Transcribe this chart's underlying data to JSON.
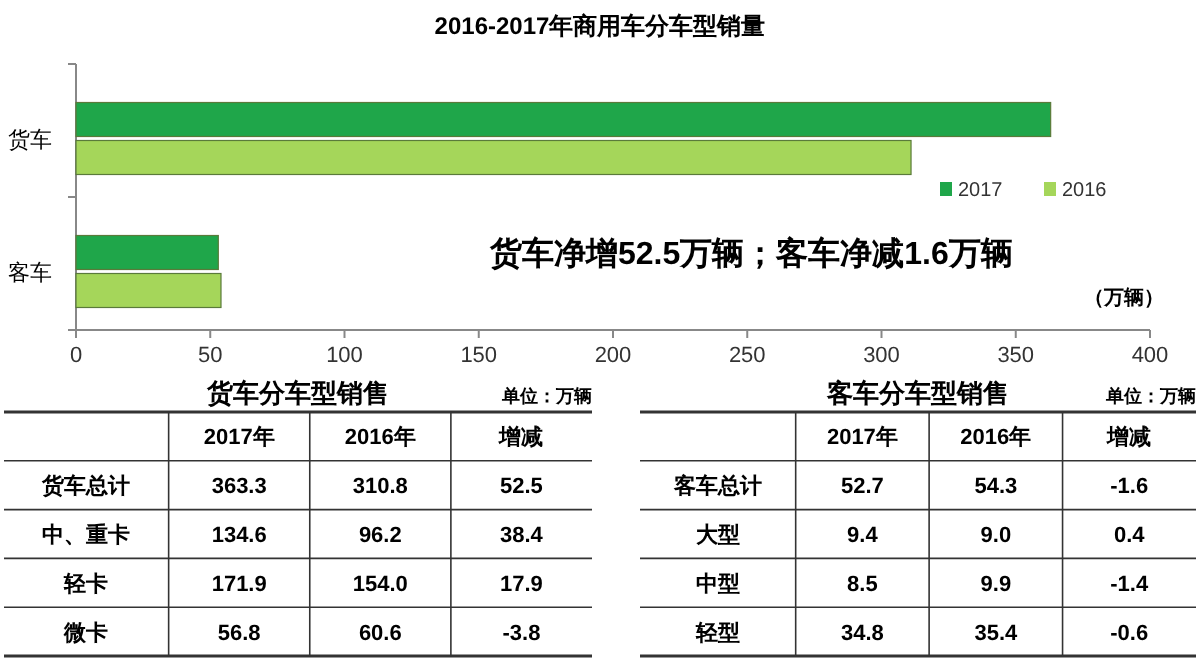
{
  "chart_data": [
    {
      "type": "bar",
      "orientation": "horizontal",
      "title": "2016-2017年商用车分车型销量",
      "xlabel": "（万辆）",
      "categories": [
        "货车",
        "客车"
      ],
      "series": [
        {
          "name": "2017",
          "color": "#1fa64a",
          "values": [
            363,
            53
          ]
        },
        {
          "name": "2016",
          "color": "#a5d65a",
          "values": [
            311,
            54
          ]
        }
      ],
      "xlim": [
        0,
        400
      ],
      "xticks": [
        0,
        50,
        100,
        150,
        200,
        250,
        300,
        350,
        400
      ],
      "legend": "right",
      "annotations": [
        "货车净增52.5万辆；客车净减1.6万辆"
      ]
    },
    {
      "type": "other",
      "title": "货车分车型销售",
      "annotations": [
        "单位：万辆"
      ],
      "categories": [
        "货车总计",
        "中、重卡",
        "轻卡",
        "微卡"
      ],
      "series": [
        {
          "name": "2017年",
          "values": [
            363.3,
            134.6,
            171.9,
            56.8
          ],
          "value_labels": [
            "363.3",
            "134.6",
            "171.9",
            "56.8"
          ]
        },
        {
          "name": "2016年",
          "values": [
            310.8,
            96.2,
            154.0,
            60.6
          ],
          "value_labels": [
            "310.8",
            "96.2",
            "154.0",
            "60.6"
          ]
        },
        {
          "name": "增减",
          "values": [
            52.5,
            38.4,
            17.9,
            -3.8
          ],
          "value_labels": [
            "52.5",
            "38.4",
            "17.9",
            "-3.8"
          ]
        }
      ]
    },
    {
      "type": "other",
      "title": "客车分车型销售",
      "annotations": [
        "单位：万辆"
      ],
      "categories": [
        "客车总计",
        "大型",
        "中型",
        "轻型"
      ],
      "series": [
        {
          "name": "2017年",
          "values": [
            52.7,
            9.4,
            8.5,
            34.8
          ],
          "value_labels": [
            "52.7",
            "9.4",
            "8.5",
            "34.8"
          ]
        },
        {
          "name": "2016年",
          "values": [
            54.3,
            9.0,
            9.9,
            35.4
          ],
          "value_labels": [
            "54.3",
            "9.0",
            "9.9",
            "35.4"
          ]
        },
        {
          "name": "增减",
          "values": [
            -1.6,
            0.4,
            -1.4,
            -0.6
          ],
          "value_labels": [
            "-1.6",
            "0.4",
            "-1.4",
            "-0.6"
          ]
        }
      ]
    }
  ]
}
